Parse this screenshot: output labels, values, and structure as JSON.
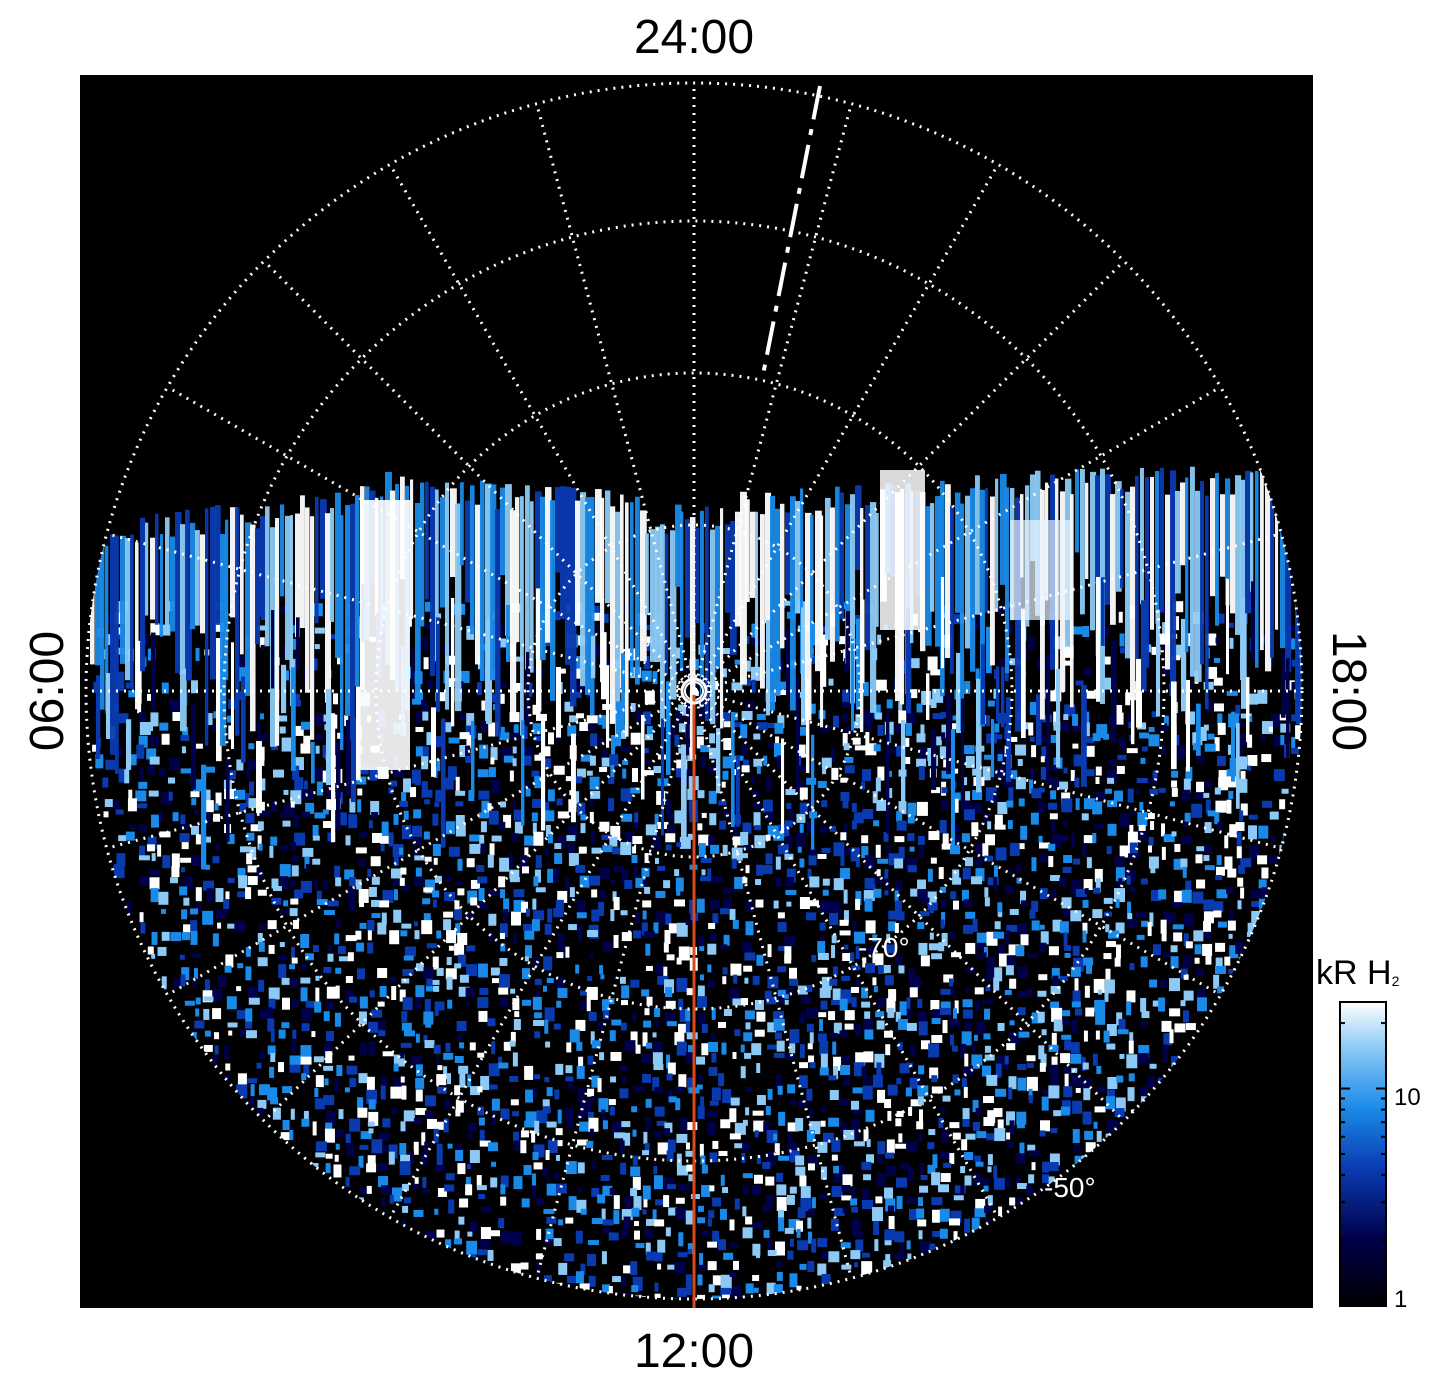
{
  "polar_plot": {
    "local_time_labels": {
      "top": "24:00",
      "bottom": "12:00",
      "left": "06:00",
      "right": "18:00"
    },
    "latitude_labels": [
      {
        "text": "-70°",
        "lat": -70
      },
      {
        "text": "-50°",
        "lat": -50
      }
    ],
    "colors": {
      "background": "#000000",
      "grid": "#ffffff",
      "meridian_line": "#d94a1e"
    }
  },
  "colorbar": {
    "unit_main": "kR H",
    "unit_sub": "2",
    "scale": "log",
    "range": [
      1,
      25
    ],
    "ticks": [
      {
        "label": "10",
        "value": 10
      },
      {
        "label": "1",
        "value": 1
      }
    ],
    "colors": [
      "#000000",
      "#00004a",
      "#0a3ab0",
      "#1a8ae8",
      "#8ccaf5",
      "#ffffff"
    ]
  }
}
